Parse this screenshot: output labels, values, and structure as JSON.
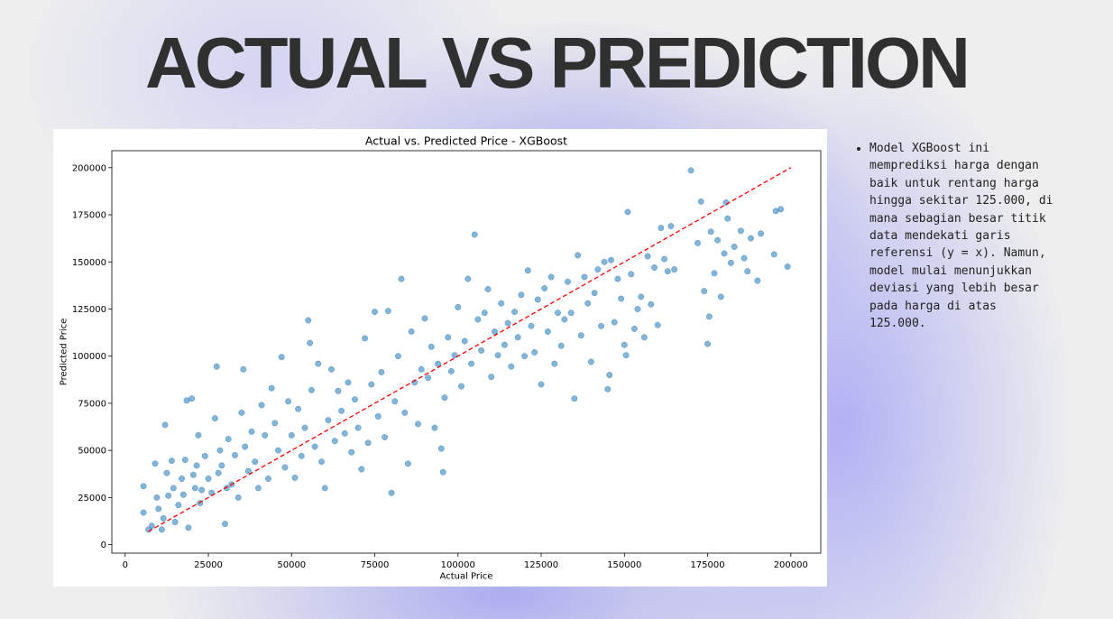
{
  "slide": {
    "title": "ACTUAL VS PREDICTION",
    "bullets": [
      "Model XGBoost ini memprediksi harga dengan baik untuk rentang harga hingga sekitar 125.000, di mana sebagian besar titik data mendekati garis referensi (y = x). Namun, model mulai menunjukkan deviasi yang lebih besar pada harga di atas 125.000."
    ]
  },
  "chart_data": {
    "type": "scatter",
    "title": "Actual vs. Predicted Price - XGBoost",
    "xlabel": "Actual Price",
    "ylabel": "Predicted Price",
    "xlim": [
      -4000,
      209000
    ],
    "ylim": [
      -4500,
      209000
    ],
    "xticks": [
      0,
      25000,
      50000,
      75000,
      100000,
      125000,
      150000,
      175000,
      200000
    ],
    "yticks": [
      0,
      25000,
      50000,
      75000,
      100000,
      125000,
      150000,
      175000,
      200000
    ],
    "point_color": "#1f77b4",
    "reference_line": {
      "from": [
        7000,
        7000
      ],
      "to": [
        200000,
        200000
      ],
      "color": "#ff0000",
      "style": "dashed"
    },
    "grid": false,
    "legend": "none",
    "points": [
      [
        5500,
        31000
      ],
      [
        5500,
        17000
      ],
      [
        7000,
        8000
      ],
      [
        8000,
        10000
      ],
      [
        9000,
        43000
      ],
      [
        9500,
        25000
      ],
      [
        10000,
        19000
      ],
      [
        11000,
        8000
      ],
      [
        11500,
        14000
      ],
      [
        12000,
        63500
      ],
      [
        12500,
        38000
      ],
      [
        13000,
        26000
      ],
      [
        14000,
        44500
      ],
      [
        14500,
        30000
      ],
      [
        15000,
        12000
      ],
      [
        16000,
        21000
      ],
      [
        17000,
        35000
      ],
      [
        17500,
        26500
      ],
      [
        18000,
        45000
      ],
      [
        18500,
        76500
      ],
      [
        19000,
        9000
      ],
      [
        20000,
        77500
      ],
      [
        20500,
        37000
      ],
      [
        21000,
        30000
      ],
      [
        21500,
        42000
      ],
      [
        22000,
        58000
      ],
      [
        22500,
        22000
      ],
      [
        23000,
        29000
      ],
      [
        24000,
        47000
      ],
      [
        25000,
        35000
      ],
      [
        26000,
        27500
      ],
      [
        27000,
        67000
      ],
      [
        27500,
        94500
      ],
      [
        28000,
        38000
      ],
      [
        28500,
        50000
      ],
      [
        29000,
        42000
      ],
      [
        30000,
        11000
      ],
      [
        30500,
        30000
      ],
      [
        31000,
        56000
      ],
      [
        32000,
        32000
      ],
      [
        33000,
        47500
      ],
      [
        34000,
        25000
      ],
      [
        35000,
        70000
      ],
      [
        35500,
        93000
      ],
      [
        36000,
        52000
      ],
      [
        37000,
        39000
      ],
      [
        38000,
        60000
      ],
      [
        39000,
        44000
      ],
      [
        40000,
        30000
      ],
      [
        41000,
        74000
      ],
      [
        42000,
        58000
      ],
      [
        43000,
        35000
      ],
      [
        44000,
        83000
      ],
      [
        45000,
        64500
      ],
      [
        46000,
        50000
      ],
      [
        47000,
        99500
      ],
      [
        48000,
        41000
      ],
      [
        49000,
        76000
      ],
      [
        50000,
        58000
      ],
      [
        51000,
        35500
      ],
      [
        52000,
        72000
      ],
      [
        53000,
        47000
      ],
      [
        54000,
        62000
      ],
      [
        55000,
        119000
      ],
      [
        55500,
        107000
      ],
      [
        56000,
        82000
      ],
      [
        57000,
        52000
      ],
      [
        58000,
        96000
      ],
      [
        59000,
        44000
      ],
      [
        60000,
        30000
      ],
      [
        61000,
        66000
      ],
      [
        62000,
        93000
      ],
      [
        63000,
        55000
      ],
      [
        64000,
        81500
      ],
      [
        65000,
        71000
      ],
      [
        66000,
        59000
      ],
      [
        67000,
        86000
      ],
      [
        68000,
        49000
      ],
      [
        69000,
        77000
      ],
      [
        70000,
        62000
      ],
      [
        71000,
        40000
      ],
      [
        72000,
        109500
      ],
      [
        73000,
        54000
      ],
      [
        74000,
        85000
      ],
      [
        75000,
        123500
      ],
      [
        76000,
        68000
      ],
      [
        77000,
        91500
      ],
      [
        78000,
        57000
      ],
      [
        79000,
        124000
      ],
      [
        80000,
        27500
      ],
      [
        81000,
        76000
      ],
      [
        82000,
        100000
      ],
      [
        83000,
        141000
      ],
      [
        84000,
        70000
      ],
      [
        85000,
        43000
      ],
      [
        86000,
        113000
      ],
      [
        87000,
        86000
      ],
      [
        88000,
        64000
      ],
      [
        89000,
        93000
      ],
      [
        90000,
        120000
      ],
      [
        91000,
        88500
      ],
      [
        92000,
        105000
      ],
      [
        93000,
        62000
      ],
      [
        94000,
        96000
      ],
      [
        95000,
        51000
      ],
      [
        95500,
        38500
      ],
      [
        96000,
        78000
      ],
      [
        97000,
        110000
      ],
      [
        98000,
        92000
      ],
      [
        99000,
        100500
      ],
      [
        100000,
        126000
      ],
      [
        101000,
        84000
      ],
      [
        102000,
        108000
      ],
      [
        103000,
        141000
      ],
      [
        104000,
        96000
      ],
      [
        105000,
        164500
      ],
      [
        106000,
        119500
      ],
      [
        107000,
        103000
      ],
      [
        108000,
        123000
      ],
      [
        109000,
        135500
      ],
      [
        110000,
        89000
      ],
      [
        111000,
        113000
      ],
      [
        112000,
        100500
      ],
      [
        113000,
        128000
      ],
      [
        114000,
        106000
      ],
      [
        115000,
        117500
      ],
      [
        116000,
        94500
      ],
      [
        117000,
        123500
      ],
      [
        118000,
        110000
      ],
      [
        119000,
        132500
      ],
      [
        120000,
        100000
      ],
      [
        121000,
        145500
      ],
      [
        122000,
        116000
      ],
      [
        123000,
        102000
      ],
      [
        124000,
        130000
      ],
      [
        125000,
        85000
      ],
      [
        126000,
        136000
      ],
      [
        127000,
        113000
      ],
      [
        128000,
        142000
      ],
      [
        129000,
        96000
      ],
      [
        130000,
        123000
      ],
      [
        131000,
        105500
      ],
      [
        132000,
        119500
      ],
      [
        133000,
        139500
      ],
      [
        134000,
        123000
      ],
      [
        135000,
        77500
      ],
      [
        136000,
        153500
      ],
      [
        137000,
        111000
      ],
      [
        138000,
        142000
      ],
      [
        139000,
        128000
      ],
      [
        140000,
        97000
      ],
      [
        141000,
        133500
      ],
      [
        142000,
        146000
      ],
      [
        143000,
        116000
      ],
      [
        144000,
        150000
      ],
      [
        145000,
        82500
      ],
      [
        145500,
        90000
      ],
      [
        146000,
        151000
      ],
      [
        147000,
        118000
      ],
      [
        148000,
        141000
      ],
      [
        149000,
        130500
      ],
      [
        150000,
        106000
      ],
      [
        150500,
        100500
      ],
      [
        151000,
        176500
      ],
      [
        152000,
        143500
      ],
      [
        153000,
        114500
      ],
      [
        154000,
        125000
      ],
      [
        155000,
        131500
      ],
      [
        156000,
        110000
      ],
      [
        157000,
        153000
      ],
      [
        158000,
        127500
      ],
      [
        159000,
        147000
      ],
      [
        160000,
        116500
      ],
      [
        161000,
        168000
      ],
      [
        162000,
        151500
      ],
      [
        163000,
        145000
      ],
      [
        164000,
        169000
      ],
      [
        165000,
        146000
      ],
      [
        170000,
        198500
      ],
      [
        172000,
        160000
      ],
      [
        173000,
        182000
      ],
      [
        174000,
        134500
      ],
      [
        175000,
        106500
      ],
      [
        175500,
        121000
      ],
      [
        176000,
        166000
      ],
      [
        177000,
        144000
      ],
      [
        178000,
        161500
      ],
      [
        179000,
        131500
      ],
      [
        180000,
        154500
      ],
      [
        180500,
        181500
      ],
      [
        181000,
        173000
      ],
      [
        182000,
        149500
      ],
      [
        183000,
        158000
      ],
      [
        185000,
        166500
      ],
      [
        186000,
        152000
      ],
      [
        187000,
        145000
      ],
      [
        188000,
        162500
      ],
      [
        190000,
        140000
      ],
      [
        191000,
        165000
      ],
      [
        195000,
        154000
      ],
      [
        195500,
        177000
      ],
      [
        197000,
        178000
      ],
      [
        199000,
        147500
      ]
    ]
  }
}
